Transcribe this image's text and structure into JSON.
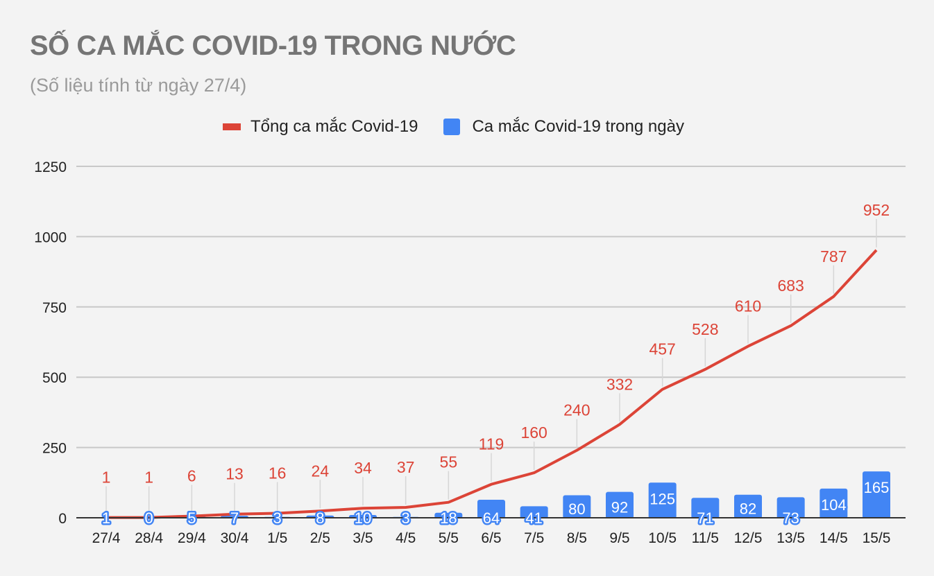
{
  "header": {
    "title": "SỐ CA MẮC COVID-19 TRONG NƯỚC",
    "subtitle": "(Số liệu tính từ ngày 27/4)"
  },
  "legend": {
    "items": [
      {
        "label": "Tổng ca mắc Covid-19",
        "color": "#dc4437",
        "shape": "line"
      },
      {
        "label": "Ca mắc Covid-19 trong ngày",
        "color": "#4285f4",
        "shape": "box"
      }
    ]
  },
  "chart_data": {
    "type": "bar+line",
    "title": "SỐ CA MẮC COVID-19 TRONG NƯỚC",
    "subtitle": "(Số liệu tính từ ngày 27/4)",
    "xlabel": "",
    "ylabel": "",
    "ylim": [
      0,
      1250
    ],
    "yticks": [
      0,
      250,
      500,
      750,
      1000,
      1250
    ],
    "grid": true,
    "legend_position": "top",
    "categories": [
      "27/4",
      "28/4",
      "29/4",
      "30/4",
      "1/5",
      "2/5",
      "3/5",
      "4/5",
      "5/5",
      "6/5",
      "7/5",
      "8/5",
      "9/5",
      "10/5",
      "11/5",
      "12/5",
      "13/5",
      "14/5",
      "15/5"
    ],
    "series": [
      {
        "name": "Tổng ca mắc Covid-19",
        "type": "line",
        "color": "#dc4437",
        "values": [
          1,
          1,
          6,
          13,
          16,
          24,
          34,
          37,
          55,
          119,
          160,
          240,
          332,
          457,
          528,
          610,
          683,
          787,
          952
        ]
      },
      {
        "name": "Ca mắc Covid-19 trong ngày",
        "type": "bar",
        "color": "#4285f4",
        "values": [
          1,
          0,
          5,
          7,
          3,
          8,
          10,
          3,
          18,
          64,
          41,
          80,
          92,
          125,
          71,
          82,
          73,
          104,
          165
        ]
      }
    ]
  }
}
